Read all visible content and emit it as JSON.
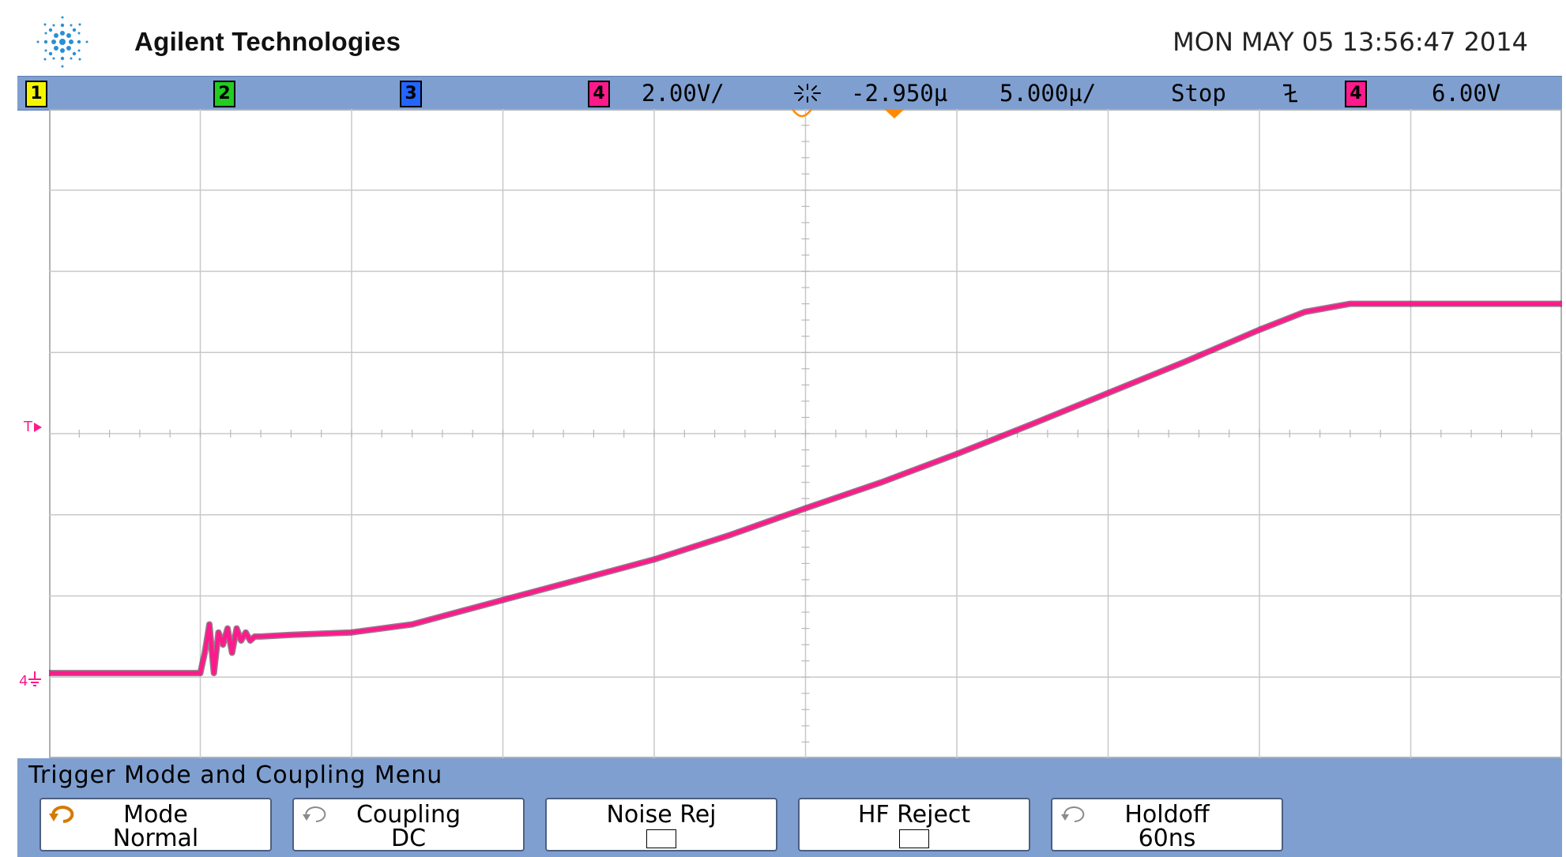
{
  "header": {
    "brand": "Agilent Technologies",
    "datetime": "MON MAY 05 13:56:47 2014"
  },
  "status": {
    "channels": [
      {
        "num": "1",
        "color": "#f5f500"
      },
      {
        "num": "2",
        "color": "#22cc22"
      },
      {
        "num": "3",
        "color": "#2266ff"
      },
      {
        "num": "4",
        "color": "#ff1a8c"
      }
    ],
    "ch4_scale": "2.00V/",
    "h_position": "-2.950µ",
    "time_scale": "5.000µ/",
    "run_state": "Stop",
    "trigger_source": "4",
    "trigger_level": "6.00V",
    "colors": {
      "bar": "#7f9fd0",
      "trace": "#ff1a8c"
    }
  },
  "graticule": {
    "trigger_marker": "T",
    "ground_marker": "4"
  },
  "chart_data": {
    "type": "line",
    "title": "",
    "xlabel": "",
    "ylabel": "",
    "x_divisions": 10,
    "y_divisions": 8,
    "xlim": [
      0,
      10
    ],
    "ylim": [
      -4,
      4
    ],
    "grid": true,
    "series": [
      {
        "channel": "4",
        "color": "#ff1a8c",
        "x": [
          0,
          1.0,
          1.03,
          1.06,
          1.09,
          1.12,
          1.15,
          1.18,
          1.21,
          1.24,
          1.27,
          1.3,
          1.33,
          1.36,
          1.4,
          1.6,
          2.0,
          2.4,
          2.7,
          3.0,
          3.5,
          4.0,
          4.5,
          5.0,
          5.5,
          6.0,
          6.5,
          7.0,
          7.5,
          8.0,
          8.3,
          8.6,
          10
        ],
        "y": [
          -2.95,
          -2.95,
          -2.7,
          -2.35,
          -2.95,
          -2.45,
          -2.6,
          -2.4,
          -2.7,
          -2.4,
          -2.55,
          -2.45,
          -2.55,
          -2.5,
          -2.5,
          -2.48,
          -2.45,
          -2.35,
          -2.2,
          -2.05,
          -1.8,
          -1.55,
          -1.25,
          -0.92,
          -0.6,
          -0.25,
          0.12,
          0.5,
          0.88,
          1.28,
          1.5,
          1.6,
          1.6
        ]
      }
    ]
  },
  "menu": {
    "title": "Trigger Mode and Coupling Menu",
    "softkeys": [
      {
        "line1": "Mode",
        "line2": "Normal"
      },
      {
        "line1": "Coupling",
        "line2": "DC"
      },
      {
        "line1": "Noise Rej",
        "line2": ""
      },
      {
        "line1": "HF Reject",
        "line2": ""
      },
      {
        "line1": "Holdoff",
        "line2": "60ns"
      }
    ]
  }
}
